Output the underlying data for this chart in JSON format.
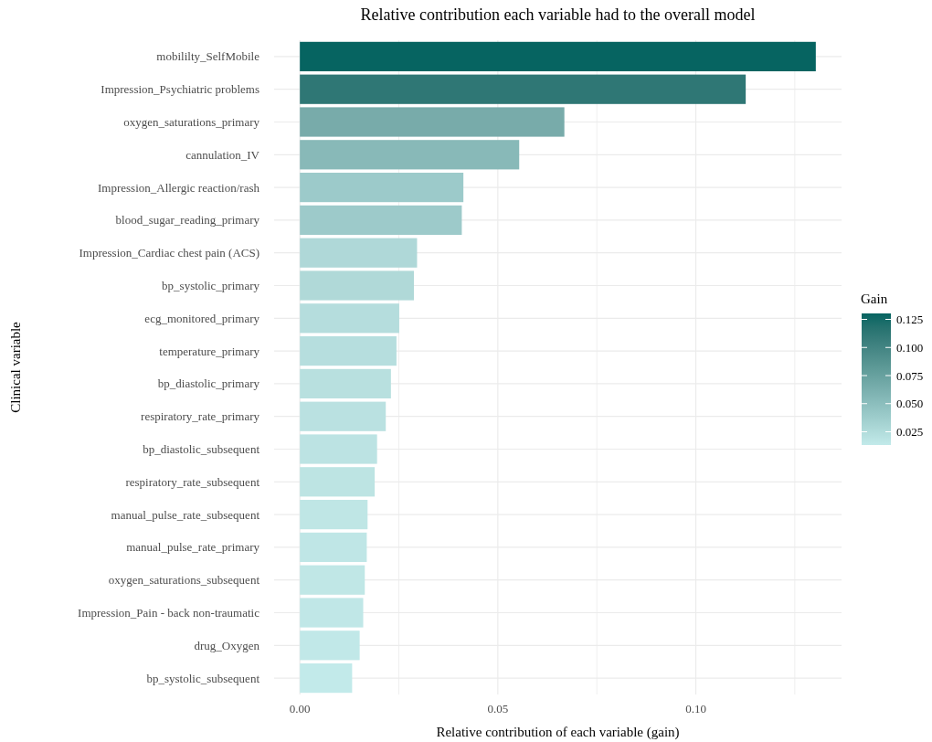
{
  "chart_data": {
    "type": "bar",
    "orientation": "horizontal",
    "title": "Relative contribution each variable had to the overall model",
    "xlabel": "Relative contribution of each variable (gain)",
    "ylabel": "Clinical variable",
    "legend_title": "Gain",
    "categories": [
      "mobililty_SelfMobile",
      "Impression_Psychiatric problems",
      "oxygen_saturations_primary",
      "cannulation_IV",
      "Impression_Allergic reaction/rash",
      "blood_sugar_reading_primary",
      "Impression_Cardiac chest pain (ACS)",
      "bp_systolic_primary",
      "ecg_monitored_primary",
      "temperature_primary",
      "bp_diastolic_primary",
      "respiratory_rate_primary",
      "bp_diastolic_subsequent",
      "respiratory_rate_subsequent",
      "manual_pulse_rate_subsequent",
      "manual_pulse_rate_primary",
      "oxygen_saturations_subsequent",
      "Impression_Pain - back non-traumatic",
      "drug_Oxygen",
      "bp_systolic_subsequent"
    ],
    "values": [
      0.1303,
      0.1126,
      0.0668,
      0.0554,
      0.0413,
      0.0409,
      0.0296,
      0.0288,
      0.0251,
      0.0244,
      0.023,
      0.0217,
      0.0195,
      0.0189,
      0.0171,
      0.0169,
      0.0164,
      0.016,
      0.0151,
      0.0132
    ],
    "colors": [
      "#066461",
      "#2f7775",
      "#78abaa",
      "#88b9b8",
      "#9ccaca",
      "#9dcaca",
      "#afd8d8",
      "#b0d9d8",
      "#b5dddd",
      "#b6dede",
      "#b8e0df",
      "#bae1e1",
      "#bce3e3",
      "#bde4e3",
      "#bfe6e5",
      "#bfe6e6",
      "#c0e7e6",
      "#c0e7e7",
      "#c1e8e8",
      "#c2eaea"
    ],
    "xlim": [
      -0.0065,
      0.1368
    ],
    "xticks": [
      {
        "value": 0,
        "label": "0.00"
      },
      {
        "value": 0.025,
        "label": null
      },
      {
        "value": 0.05,
        "label": "0.05"
      },
      {
        "value": 0.075,
        "label": null
      },
      {
        "value": 0.1,
        "label": "0.10"
      },
      {
        "value": 0.125,
        "label": null
      }
    ],
    "clim": [
      0.0132,
      0.1303
    ],
    "cticks": [
      {
        "value": 0.025,
        "label": "0.025"
      },
      {
        "value": 0.05,
        "label": "0.050"
      },
      {
        "value": 0.075,
        "label": "0.075"
      },
      {
        "value": 0.1,
        "label": "0.100"
      },
      {
        "value": 0.125,
        "label": "0.125"
      }
    ],
    "grid": true
  }
}
